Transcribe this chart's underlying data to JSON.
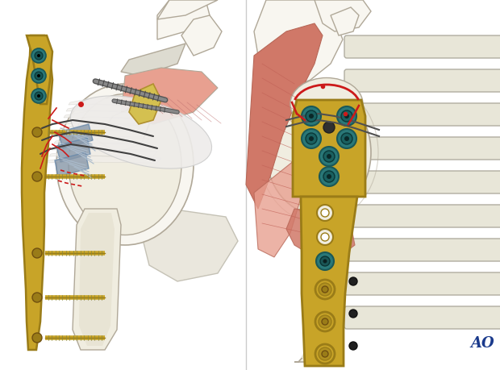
{
  "figure_width": 6.2,
  "figure_height": 4.59,
  "dpi": 100,
  "background_color": "#ffffff",
  "ao_text": "AO",
  "ao_color": "#1a3a8c",
  "ao_fontsize": 13,
  "bone_color": "#f0ede0",
  "bone_light": "#e8e5d5",
  "bone_outline": "#b0a898",
  "bone_white": "#f5f3ee",
  "muscle_color_light": "#e8a090",
  "muscle_color": "#d07868",
  "muscle_outline": "#b86858",
  "gold": "#c8a428",
  "dark_gold": "#9a7c18",
  "teal_outer": "#2a7878",
  "teal_inner": "#1a5858",
  "red": "#cc1a1a",
  "gray_screw": "#707070",
  "gray_dark": "#505050",
  "blue_gray": "#8898aa",
  "yellow_bone": "#d4c050",
  "white_bone": "#f8f6f0",
  "divider_color": "#cccccc"
}
